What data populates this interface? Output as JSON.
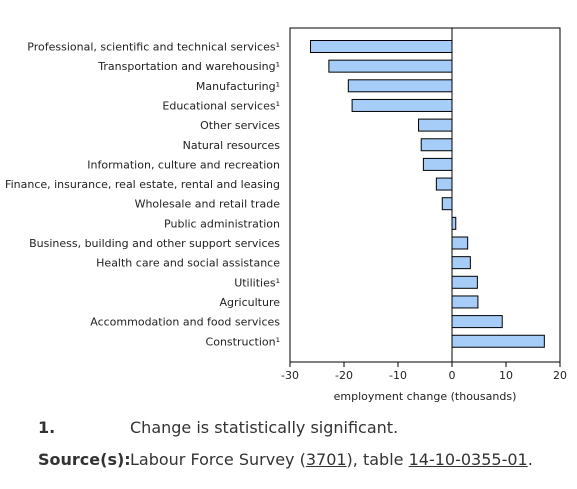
{
  "chart_data": {
    "type": "bar",
    "orientation": "horizontal",
    "categories": [
      "Professional, scientific and technical services¹",
      "Transportation and warehousing¹",
      "Manufacturing¹",
      "Educational services¹",
      "Other services",
      "Natural resources",
      "Information, culture and recreation",
      "Finance, insurance, real estate, rental and leasing",
      "Wholesale and retail trade",
      "Public administration",
      "Business, building and other support services",
      "Health care and social assistance",
      "Utilities¹",
      "Agriculture",
      "Accommodation and food services",
      "Construction¹"
    ],
    "values": [
      -26.2,
      -22.8,
      -19.2,
      -18.5,
      -6.2,
      -5.7,
      -5.3,
      -2.9,
      -1.8,
      0.7,
      2.9,
      3.4,
      4.7,
      4.8,
      9.3,
      17.1
    ],
    "xlabel": "employment change (thousands)",
    "xlim": [
      -30,
      20
    ],
    "xticks": [
      -30,
      -20,
      -10,
      0,
      10,
      20
    ],
    "grid": false,
    "bar_color": "#a6cdf7"
  },
  "footnotes": {
    "note_key": "1.",
    "note_text": "Change is statistically significant.",
    "source_key": "Source(s):",
    "source_prefix": "Labour Force Survey (",
    "source_link1": "3701",
    "source_middle": "), table ",
    "source_link2": "14-10-0355-01",
    "source_suffix": "."
  }
}
